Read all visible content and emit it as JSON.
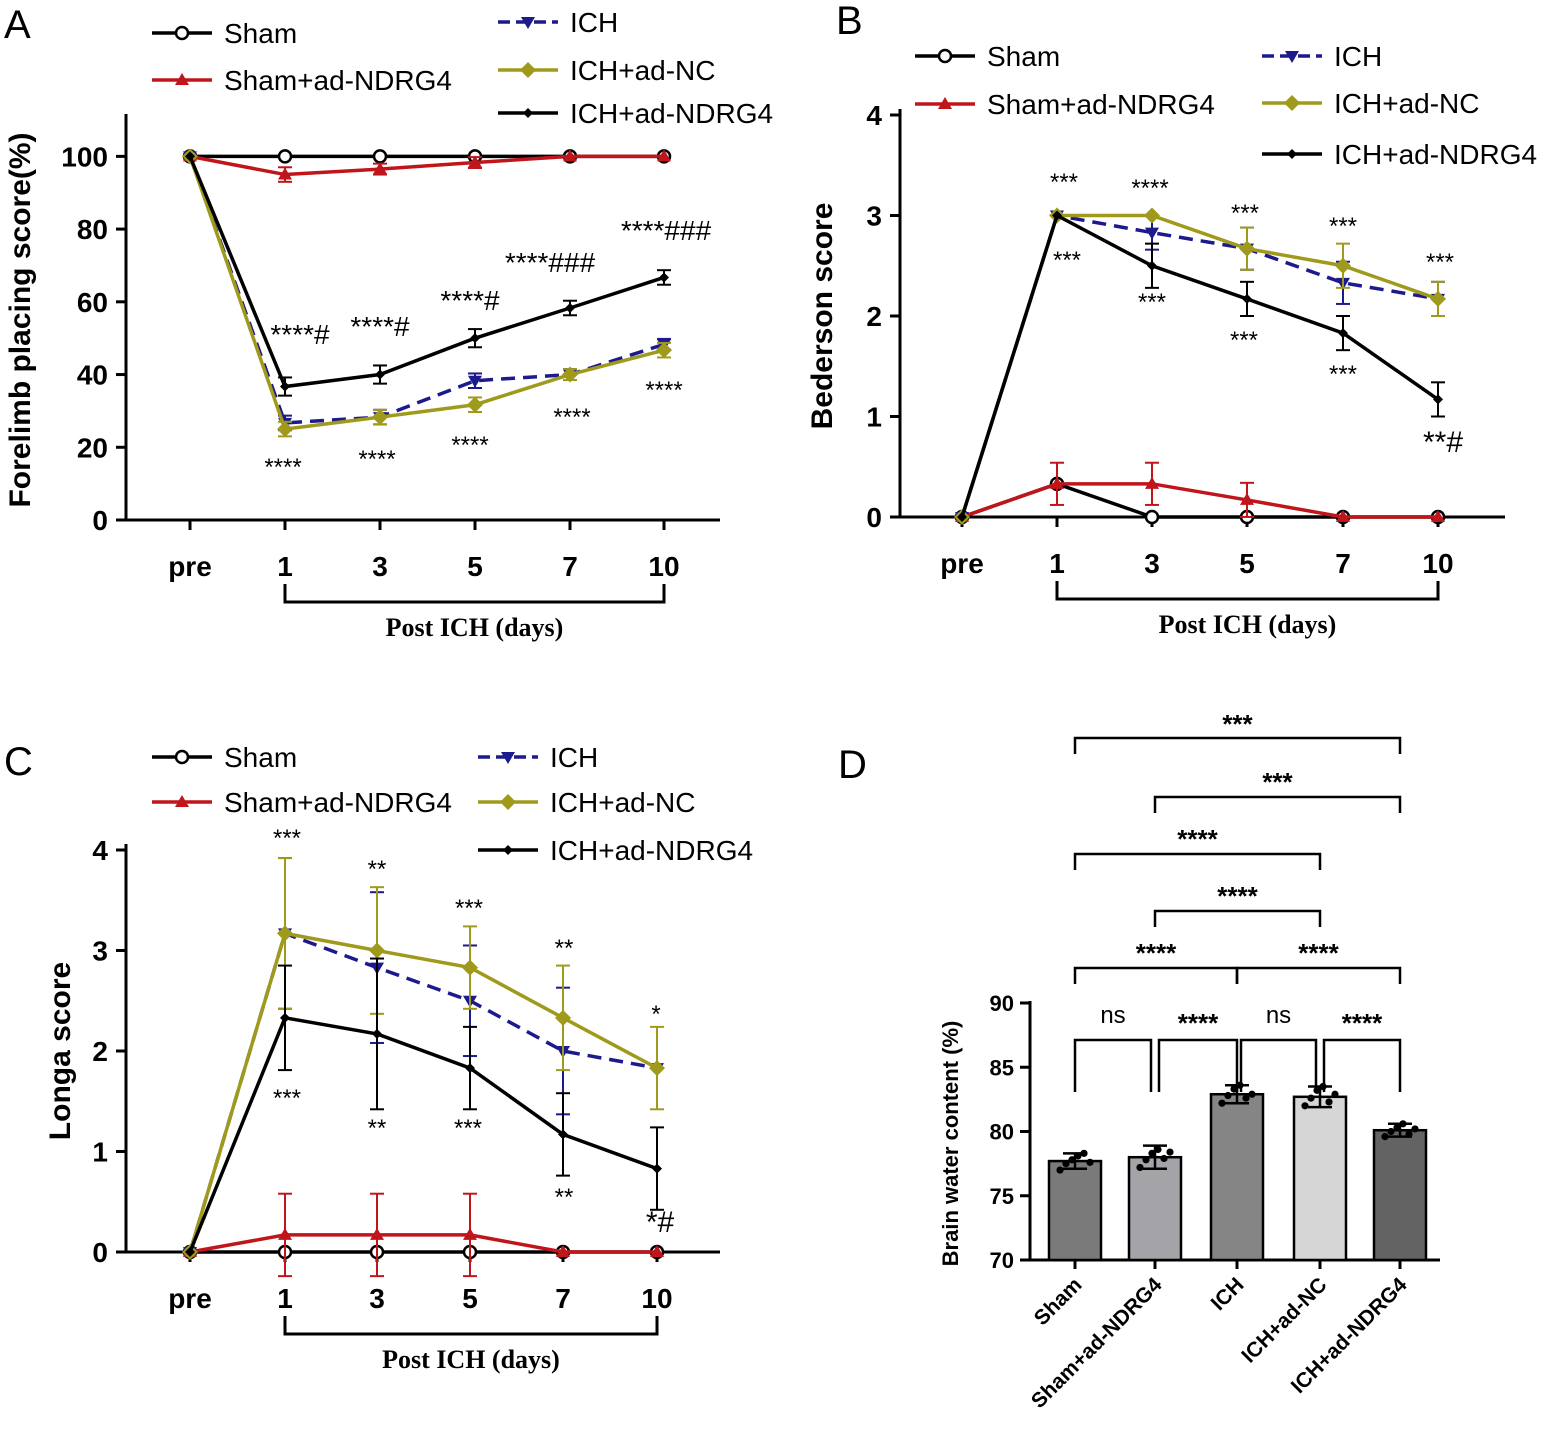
{
  "colors": {
    "sham": "#000000",
    "sham_ad": "#c0161b",
    "ich": "#1c1a8c",
    "ich_nc": "#a09a1c",
    "ich_ad": "#000000",
    "bar_sham": "#7a7a7a",
    "bar_sham_ad": "#a3a3a8",
    "bar_ich": "#858585",
    "bar_ich_nc": "#d6d6d6",
    "bar_ich_ad": "#636363"
  },
  "chart_data": [
    {
      "panel": "A",
      "type": "line",
      "ylabel": "Forelimb placing score(%)",
      "xlabel": "Post ICH (days)",
      "categories": [
        "pre",
        "1",
        "3",
        "5",
        "7",
        "10"
      ],
      "ylim": [
        0,
        110
      ],
      "yticks": [
        "0",
        "20",
        "40",
        "60",
        "80",
        "100"
      ],
      "series": [
        {
          "name": "Sham",
          "values": [
            100,
            100,
            100,
            100,
            100,
            100
          ],
          "err": [
            0,
            0,
            0,
            0,
            0,
            0
          ]
        },
        {
          "name": "Sham+ad-NDRG4",
          "values": [
            100,
            95,
            96.5,
            98.3,
            100,
            100
          ],
          "err": [
            0,
            2,
            1.5,
            1.5,
            0,
            0
          ]
        },
        {
          "name": "ICH",
          "values": [
            100,
            26.7,
            28.3,
            38.3,
            40,
            48.3
          ],
          "err": [
            0,
            2,
            2,
            2,
            1.5,
            1.5
          ]
        },
        {
          "name": "ICH+ad-NC",
          "values": [
            100,
            25,
            28.3,
            31.7,
            40,
            46.7
          ],
          "err": [
            0,
            2,
            2,
            2,
            1.5,
            2
          ]
        },
        {
          "name": "ICH+ad-NDRG4",
          "values": [
            100,
            36.7,
            40,
            50,
            58.3,
            66.7
          ],
          "err": [
            0,
            2.5,
            2.5,
            2.5,
            2,
            2
          ]
        }
      ],
      "annotations": [
        "****#",
        "****#",
        "****#",
        "****###",
        "****###",
        "****",
        "****",
        "****",
        "****",
        "****"
      ],
      "legend": [
        "Sham",
        "Sham+ad-NDRG4",
        "ICH",
        "ICH+ad-NC",
        "ICH+ad-NDRG4"
      ]
    },
    {
      "panel": "B",
      "type": "line",
      "ylabel": "Bederson score",
      "xlabel": "Post ICH (days)",
      "categories": [
        "pre",
        "1",
        "3",
        "5",
        "7",
        "10"
      ],
      "ylim": [
        0,
        4
      ],
      "yticks": [
        "0",
        "1",
        "2",
        "3",
        "4"
      ],
      "series": [
        {
          "name": "Sham",
          "values": [
            0,
            0.33,
            0,
            0,
            0,
            0
          ],
          "err": [
            0,
            0,
            0,
            0,
            0,
            0
          ]
        },
        {
          "name": "Sham+ad-NDRG4",
          "values": [
            0,
            0.33,
            0.33,
            0.17,
            0,
            0
          ],
          "err": [
            0,
            0.21,
            0.21,
            0.17,
            0,
            0
          ]
        },
        {
          "name": "ICH",
          "values": [
            0,
            3,
            2.83,
            2.67,
            2.33,
            2.17
          ],
          "err": [
            0,
            0,
            0.17,
            0.21,
            0.21,
            0.17
          ]
        },
        {
          "name": "ICH+ad-NC",
          "values": [
            0,
            3,
            3,
            2.67,
            2.5,
            2.17
          ],
          "err": [
            0,
            0,
            0,
            0.21,
            0.22,
            0.17
          ]
        },
        {
          "name": "ICH+ad-NDRG4",
          "values": [
            0,
            3,
            2.5,
            2.17,
            1.83,
            1.17
          ],
          "err": [
            0,
            0,
            0.22,
            0.17,
            0.17,
            0.17
          ]
        }
      ],
      "annotations": [
        "***",
        "****",
        "***",
        "***",
        "***",
        "***",
        "***",
        "***",
        "***",
        "**#"
      ],
      "legend": [
        "Sham",
        "Sham+ad-NDRG4",
        "ICH",
        "ICH+ad-NC",
        "ICH+ad-NDRG4"
      ]
    },
    {
      "panel": "C",
      "type": "line",
      "ylabel": "Longa score",
      "xlabel": "Post ICH (days)",
      "categories": [
        "pre",
        "1",
        "3",
        "5",
        "7",
        "10"
      ],
      "ylim": [
        0,
        4
      ],
      "yticks": [
        "0",
        "1",
        "2",
        "3",
        "4"
      ],
      "series": [
        {
          "name": "Sham",
          "values": [
            0,
            0,
            0,
            0,
            0,
            0
          ],
          "err": [
            0,
            0,
            0,
            0,
            0,
            0
          ]
        },
        {
          "name": "Sham+ad-NDRG4",
          "values": [
            0,
            0.17,
            0.17,
            0.17,
            0,
            0
          ],
          "err": [
            0,
            0.41,
            0.41,
            0.41,
            0,
            0
          ]
        },
        {
          "name": "ICH",
          "values": [
            0,
            3.17,
            2.83,
            2.5,
            2,
            1.83
          ],
          "err": [
            0,
            0.75,
            0.75,
            0.55,
            0.63,
            0
          ]
        },
        {
          "name": "ICH+ad-NC",
          "values": [
            0,
            3.17,
            3,
            2.83,
            2.33,
            1.83
          ],
          "err": [
            0,
            0.75,
            0.63,
            0.41,
            0.52,
            0.41
          ]
        },
        {
          "name": "ICH+ad-NDRG4",
          "values": [
            0,
            2.33,
            2.17,
            1.83,
            1.17,
            0.83
          ],
          "err": [
            0,
            0.52,
            0.75,
            0.41,
            0.41,
            0.41
          ]
        }
      ],
      "annotations": [
        "***",
        "**",
        "***",
        "**",
        "*",
        "***",
        "**",
        "***",
        "**",
        "*#"
      ],
      "legend": [
        "Sham",
        "Sham+ad-NDRG4",
        "ICH",
        "ICH+ad-NC",
        "ICH+ad-NDRG4"
      ]
    },
    {
      "panel": "D",
      "type": "bar",
      "ylabel": "Brain water content  (%)",
      "categories": [
        "Sham",
        "Sham+ad-NDRG4",
        "ICH",
        "ICH+ad-NC",
        "ICH+ad-NDRG4"
      ],
      "values": [
        77.7,
        78.0,
        82.9,
        82.7,
        80.1
      ],
      "err": [
        0.6,
        0.9,
        0.7,
        0.8,
        0.5
      ],
      "points": [
        [
          77.0,
          77.5,
          77.8,
          78.1,
          78.3,
          77.6
        ],
        [
          77.2,
          77.8,
          78.3,
          78.6,
          77.9,
          78.4
        ],
        [
          82.2,
          82.8,
          83.3,
          83.6,
          82.6,
          82.9
        ],
        [
          82.0,
          82.6,
          83.2,
          83.5,
          82.3,
          82.9
        ],
        [
          79.6,
          80.0,
          80.3,
          80.6,
          79.8,
          80.2
        ]
      ],
      "ylim": [
        70,
        90
      ],
      "yticks": [
        "70",
        "75",
        "80",
        "85",
        "90"
      ],
      "comparisons": [
        {
          "from": 0,
          "to": 4,
          "label": "***"
        },
        {
          "from": 1,
          "to": 4,
          "label": "***"
        },
        {
          "from": 0,
          "to": 3,
          "label": "****"
        },
        {
          "from": 1,
          "to": 3,
          "label": "****"
        },
        {
          "from": 0,
          "to": 2,
          "label": "****"
        },
        {
          "from": 2,
          "to": 4,
          "label": "****"
        },
        {
          "from": 0,
          "to": 1,
          "label": "ns"
        },
        {
          "from": 1,
          "to": 2,
          "label": "****"
        },
        {
          "from": 2,
          "to": 3,
          "label": "ns"
        },
        {
          "from": 3,
          "to": 4,
          "label": "****"
        }
      ]
    }
  ],
  "panel_labels": [
    "A",
    "B",
    "C",
    "D"
  ]
}
